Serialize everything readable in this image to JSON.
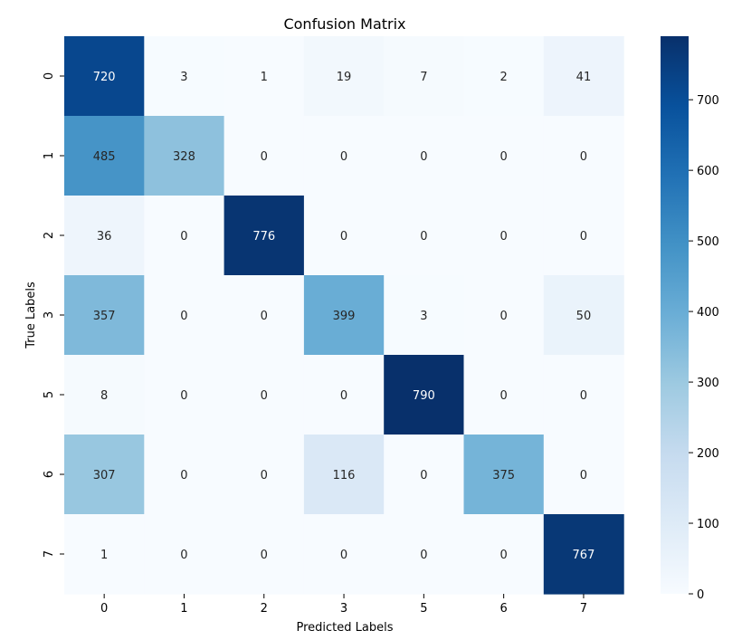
{
  "chart_data": {
    "type": "heatmap",
    "title": "Confusion Matrix",
    "xlabel": "Predicted Labels",
    "ylabel": "True Labels",
    "x_categories": [
      "0",
      "1",
      "2",
      "3",
      "5",
      "6",
      "7"
    ],
    "y_categories": [
      "0",
      "1",
      "2",
      "3",
      "5",
      "6",
      "7"
    ],
    "values": [
      [
        720,
        3,
        1,
        19,
        7,
        2,
        41
      ],
      [
        485,
        328,
        0,
        0,
        0,
        0,
        0
      ],
      [
        36,
        0,
        776,
        0,
        0,
        0,
        0
      ],
      [
        357,
        0,
        0,
        399,
        3,
        0,
        50
      ],
      [
        8,
        0,
        0,
        0,
        790,
        0,
        0
      ],
      [
        307,
        0,
        0,
        116,
        0,
        375,
        0
      ],
      [
        1,
        0,
        0,
        0,
        0,
        0,
        767
      ]
    ],
    "colormap": "Blues",
    "colorbar": {
      "min": 0,
      "max": 790,
      "ticks": [
        0,
        100,
        200,
        300,
        400,
        500,
        600,
        700
      ]
    }
  }
}
